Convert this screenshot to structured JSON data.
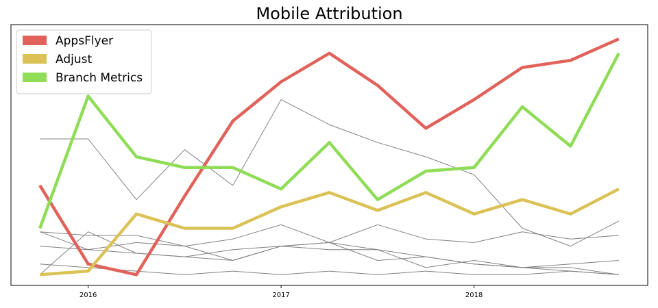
{
  "chart_data": {
    "type": "line",
    "title": "Mobile Attribution",
    "xlabel": "",
    "ylabel": "",
    "x_tick_labels": [
      {
        "label": "2016",
        "x": 2016.0
      },
      {
        "label": "2017",
        "x": 2017.0
      },
      {
        "label": "2018",
        "x": 2018.0
      }
    ],
    "x": [
      2015.75,
      2016.0,
      2016.25,
      2016.5,
      2016.75,
      2017.0,
      2017.25,
      2017.5,
      2017.75,
      2018.0,
      2018.25,
      2018.5,
      2018.75
    ],
    "xlim": [
      2015.6,
      2018.9
    ],
    "ylim": [
      -0.3,
      7.0
    ],
    "y_axis_visible": false,
    "grid": false,
    "legend": {
      "placement": "top-left"
    },
    "series": [
      {
        "name": "AppsFlyer",
        "color": "#e0625a",
        "highlight": true,
        "values": [
          2.5,
          0.3,
          0.0,
          2.2,
          4.3,
          5.4,
          6.2,
          5.3,
          4.1,
          4.9,
          5.8,
          6.0,
          6.6
        ]
      },
      {
        "name": "Adjust",
        "color": "#dbc256",
        "highlight": true,
        "values": [
          0.0,
          0.1,
          1.7,
          1.3,
          1.3,
          1.9,
          2.3,
          1.8,
          2.3,
          1.7,
          2.1,
          1.7,
          2.4
        ]
      },
      {
        "name": "Branch Metrics",
        "color": "#8fdc56",
        "highlight": true,
        "values": [
          1.3,
          5.0,
          3.3,
          3.0,
          3.0,
          2.4,
          3.7,
          2.1,
          2.9,
          3.0,
          4.7,
          3.6,
          6.2
        ]
      },
      {
        "name": "",
        "color": "#808080",
        "highlight": false,
        "values": [
          3.8,
          3.8,
          2.1,
          3.5,
          2.5,
          4.9,
          4.2,
          3.7,
          3.3,
          2.8,
          1.3,
          0.8,
          1.5
        ]
      },
      {
        "name": "",
        "color": "#808080",
        "highlight": false,
        "values": [
          1.2,
          0.7,
          0.6,
          0.5,
          0.4,
          0.8,
          0.9,
          0.4,
          0.5,
          0.3,
          0.2,
          0.3,
          0.4
        ]
      },
      {
        "name": "",
        "color": "#808080",
        "highlight": false,
        "values": [
          0.3,
          0.2,
          0.1,
          0.0,
          0.1,
          0.0,
          0.1,
          0.0,
          0.1,
          0.0,
          0.0,
          0.1,
          0.0
        ]
      },
      {
        "name": "",
        "color": "#808080",
        "highlight": false,
        "values": [
          0.8,
          0.7,
          0.9,
          0.8,
          1.0,
          1.4,
          0.9,
          1.4,
          1.0,
          0.9,
          1.2,
          1.0,
          1.1
        ]
      },
      {
        "name": "",
        "color": "#808080",
        "highlight": false,
        "values": [
          0.0,
          1.2,
          0.6,
          0.5,
          0.7,
          0.8,
          0.9,
          0.7,
          0.2,
          0.4,
          0.2,
          0.1,
          0.0
        ]
      },
      {
        "name": "",
        "color": "#808080",
        "highlight": false,
        "values": [
          1.2,
          1.1,
          1.1,
          0.8,
          0.4,
          0.8,
          0.7,
          0.7,
          0.5,
          0.3,
          0.2,
          0.2,
          0.0
        ]
      }
    ]
  }
}
